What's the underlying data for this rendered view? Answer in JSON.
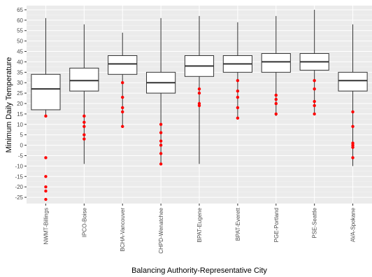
{
  "chart_data": {
    "type": "boxplot",
    "title": "",
    "xlabel": "Balancing Authority-Representative City",
    "ylabel": "Minimum Daily Temperature",
    "ylim": [
      -28,
      67
    ],
    "yticks": [
      -25,
      -20,
      -15,
      -10,
      -5,
      0,
      5,
      10,
      15,
      20,
      25,
      30,
      35,
      40,
      45,
      50,
      55,
      60,
      65
    ],
    "grid": true,
    "categories": [
      "NWMT-Billings",
      "IPCO-Boise",
      "BCHA-Vancouver",
      "CHPD-Wenatchee",
      "BPAT-Eugene",
      "BPAT-Everett",
      "PGE-Portland",
      "PSE-Seattle",
      "AVA-Spokane"
    ],
    "boxes": [
      {
        "category": "NWMT-Billings",
        "whisker_low": 14,
        "q1": 17,
        "median": 27,
        "q3": 34,
        "whisker_high": 61,
        "outliers": [
          14,
          -6,
          -15,
          -20,
          -22,
          -26
        ]
      },
      {
        "category": "IPCO-Boise",
        "whisker_low": -9,
        "q1": 26,
        "median": 31,
        "q3": 37,
        "whisker_high": 58,
        "outliers": [
          14,
          11,
          9,
          5,
          3
        ]
      },
      {
        "category": "BCHA-Vancouver",
        "whisker_low": 9,
        "q1": 34,
        "median": 39,
        "q3": 43,
        "whisker_high": 54,
        "outliers": [
          30,
          23,
          18,
          16,
          9
        ]
      },
      {
        "category": "CHPD-Wenatchee",
        "whisker_low": -9,
        "q1": 25,
        "median": 30,
        "q3": 35,
        "whisker_high": 61,
        "outliers": [
          10,
          6,
          2,
          0,
          -4,
          -9
        ]
      },
      {
        "category": "BPAT-Eugene",
        "whisker_low": -9,
        "q1": 33,
        "median": 38,
        "q3": 43,
        "whisker_high": 62,
        "outliers": [
          27,
          25,
          20,
          19
        ]
      },
      {
        "category": "BPAT-Everett",
        "whisker_low": 13,
        "q1": 35,
        "median": 39,
        "q3": 43,
        "whisker_high": 59,
        "outliers": [
          31,
          26,
          23,
          18,
          13
        ]
      },
      {
        "category": "PGE-Portland",
        "whisker_low": 14,
        "q1": 35,
        "median": 40,
        "q3": 44,
        "whisker_high": 62,
        "outliers": [
          24,
          22,
          20,
          15
        ]
      },
      {
        "category": "PSE-Seattle",
        "whisker_low": 15,
        "q1": 36,
        "median": 40,
        "q3": 44,
        "whisker_high": 65,
        "outliers": [
          31,
          27,
          21,
          19,
          15
        ]
      },
      {
        "category": "AVA-Spokane",
        "whisker_low": -10,
        "q1": 26,
        "median": 31,
        "q3": 35,
        "whisker_high": 58,
        "outliers": [
          16,
          9,
          1,
          0,
          -1,
          -6
        ]
      }
    ],
    "colors": {
      "panel_bg": "#ebebeb",
      "grid": "#ffffff",
      "box_fill": "#ffffff",
      "box_line": "#333333",
      "outlier": "#ff0000"
    }
  }
}
